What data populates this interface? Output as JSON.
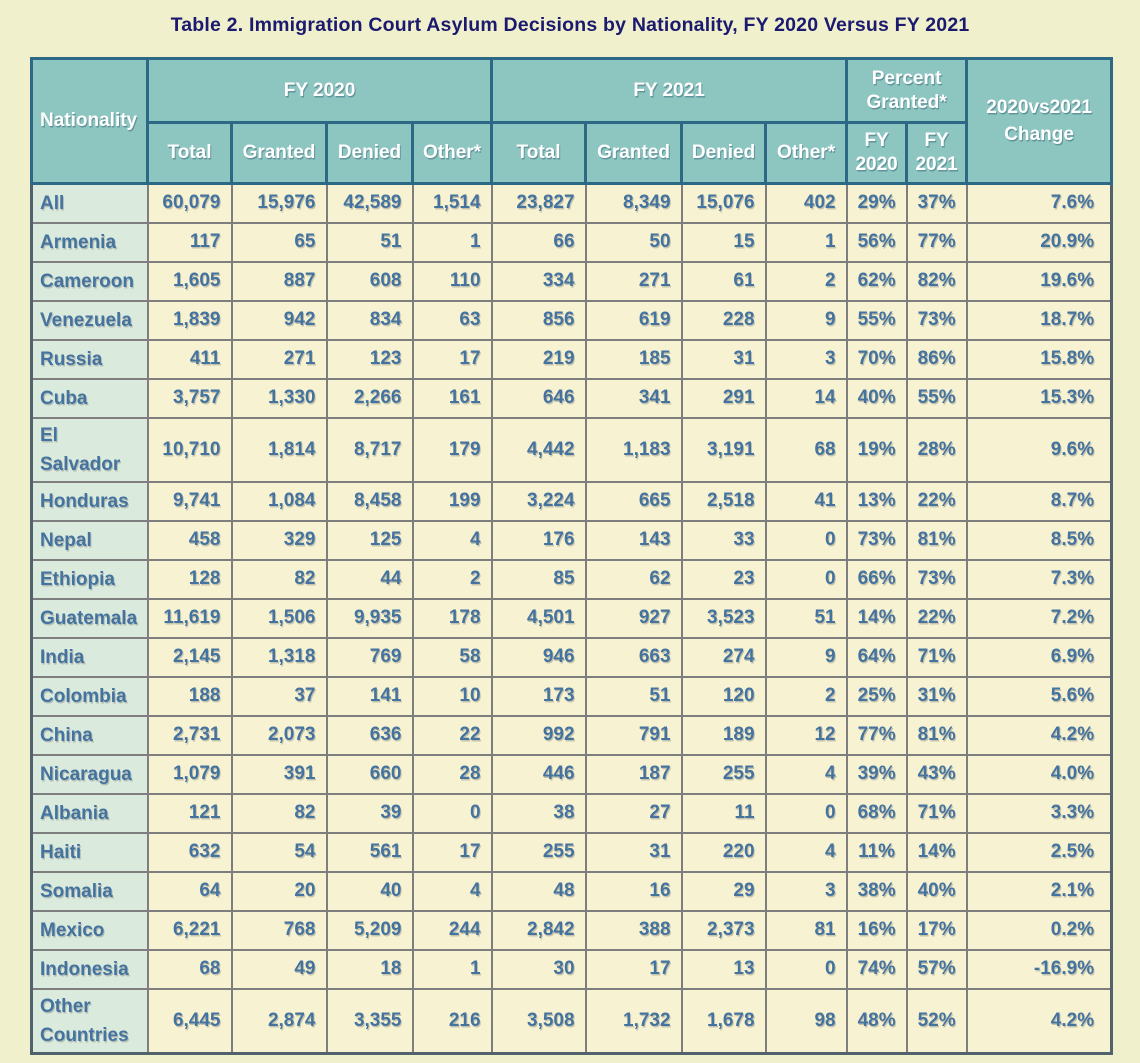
{
  "colors": {
    "page_bg": "#f0f0cd",
    "title_color": "#1b1a6e",
    "header_bg": "#8dc5c1",
    "header_text": "#ffffff",
    "header_border": "#2d6886",
    "outer_border": "#50626b",
    "cell_border": "#7e7e7e",
    "cell_bg": "#f7f3d2",
    "nationality_bg": "#daeadd",
    "value_text": "#44739f"
  },
  "chart_data": {
    "type": "table",
    "title": "Table 2. Immigration Court Asylum Decisions by Nationality, FY 2020 Versus FY 2021",
    "column_groups": [
      {
        "label": "Nationality",
        "span": 1
      },
      {
        "label": "FY 2020",
        "span": 4
      },
      {
        "label": "FY 2021",
        "span": 4
      },
      {
        "label": "Percent\nGranted*",
        "span": 2
      },
      {
        "label": "2020vs2021\nChange",
        "span": 1
      }
    ],
    "sub_headers": [
      "Total",
      "Granted",
      "Denied",
      "Other*",
      "Total",
      "Granted",
      "Denied",
      "Other*",
      "FY\n2020",
      "FY\n2021"
    ],
    "rows": [
      {
        "nationality": "All",
        "values": [
          "60,079",
          "15,976",
          "42,589",
          "1,514",
          "23,827",
          "8,349",
          "15,076",
          "402",
          "29%",
          "37%",
          "7.6%"
        ]
      },
      {
        "nationality": "Armenia",
        "values": [
          "117",
          "65",
          "51",
          "1",
          "66",
          "50",
          "15",
          "1",
          "56%",
          "77%",
          "20.9%"
        ]
      },
      {
        "nationality": "Cameroon",
        "values": [
          "1,605",
          "887",
          "608",
          "110",
          "334",
          "271",
          "61",
          "2",
          "62%",
          "82%",
          "19.6%"
        ]
      },
      {
        "nationality": "Venezuela",
        "values": [
          "1,839",
          "942",
          "834",
          "63",
          "856",
          "619",
          "228",
          "9",
          "55%",
          "73%",
          "18.7%"
        ]
      },
      {
        "nationality": "Russia",
        "values": [
          "411",
          "271",
          "123",
          "17",
          "219",
          "185",
          "31",
          "3",
          "70%",
          "86%",
          "15.8%"
        ]
      },
      {
        "nationality": "Cuba",
        "values": [
          "3,757",
          "1,330",
          "2,266",
          "161",
          "646",
          "341",
          "291",
          "14",
          "40%",
          "55%",
          "15.3%"
        ]
      },
      {
        "nationality": "El\nSalvador",
        "values": [
          "10,710",
          "1,814",
          "8,717",
          "179",
          "4,442",
          "1,183",
          "3,191",
          "68",
          "19%",
          "28%",
          "9.6%"
        ]
      },
      {
        "nationality": "Honduras",
        "values": [
          "9,741",
          "1,084",
          "8,458",
          "199",
          "3,224",
          "665",
          "2,518",
          "41",
          "13%",
          "22%",
          "8.7%"
        ]
      },
      {
        "nationality": "Nepal",
        "values": [
          "458",
          "329",
          "125",
          "4",
          "176",
          "143",
          "33",
          "0",
          "73%",
          "81%",
          "8.5%"
        ]
      },
      {
        "nationality": "Ethiopia",
        "values": [
          "128",
          "82",
          "44",
          "2",
          "85",
          "62",
          "23",
          "0",
          "66%",
          "73%",
          "7.3%"
        ]
      },
      {
        "nationality": "Guatemala",
        "values": [
          "11,619",
          "1,506",
          "9,935",
          "178",
          "4,501",
          "927",
          "3,523",
          "51",
          "14%",
          "22%",
          "7.2%"
        ]
      },
      {
        "nationality": "India",
        "values": [
          "2,145",
          "1,318",
          "769",
          "58",
          "946",
          "663",
          "274",
          "9",
          "64%",
          "71%",
          "6.9%"
        ]
      },
      {
        "nationality": "Colombia",
        "values": [
          "188",
          "37",
          "141",
          "10",
          "173",
          "51",
          "120",
          "2",
          "25%",
          "31%",
          "5.6%"
        ]
      },
      {
        "nationality": "China",
        "values": [
          "2,731",
          "2,073",
          "636",
          "22",
          "992",
          "791",
          "189",
          "12",
          "77%",
          "81%",
          "4.2%"
        ]
      },
      {
        "nationality": "Nicaragua",
        "values": [
          "1,079",
          "391",
          "660",
          "28",
          "446",
          "187",
          "255",
          "4",
          "39%",
          "43%",
          "4.0%"
        ]
      },
      {
        "nationality": "Albania",
        "values": [
          "121",
          "82",
          "39",
          "0",
          "38",
          "27",
          "11",
          "0",
          "68%",
          "71%",
          "3.3%"
        ]
      },
      {
        "nationality": "Haiti",
        "values": [
          "632",
          "54",
          "561",
          "17",
          "255",
          "31",
          "220",
          "4",
          "11%",
          "14%",
          "2.5%"
        ]
      },
      {
        "nationality": "Somalia",
        "values": [
          "64",
          "20",
          "40",
          "4",
          "48",
          "16",
          "29",
          "3",
          "38%",
          "40%",
          "2.1%"
        ]
      },
      {
        "nationality": "Mexico",
        "values": [
          "6,221",
          "768",
          "5,209",
          "244",
          "2,842",
          "388",
          "2,373",
          "81",
          "16%",
          "17%",
          "0.2%"
        ]
      },
      {
        "nationality": "Indonesia",
        "values": [
          "68",
          "49",
          "18",
          "1",
          "30",
          "17",
          "13",
          "0",
          "74%",
          "57%",
          "-16.9%"
        ]
      },
      {
        "nationality": "Other\nCountries",
        "values": [
          "6,445",
          "2,874",
          "3,355",
          "216",
          "3,508",
          "1,732",
          "1,678",
          "98",
          "48%",
          "52%",
          "4.2%"
        ]
      }
    ]
  }
}
